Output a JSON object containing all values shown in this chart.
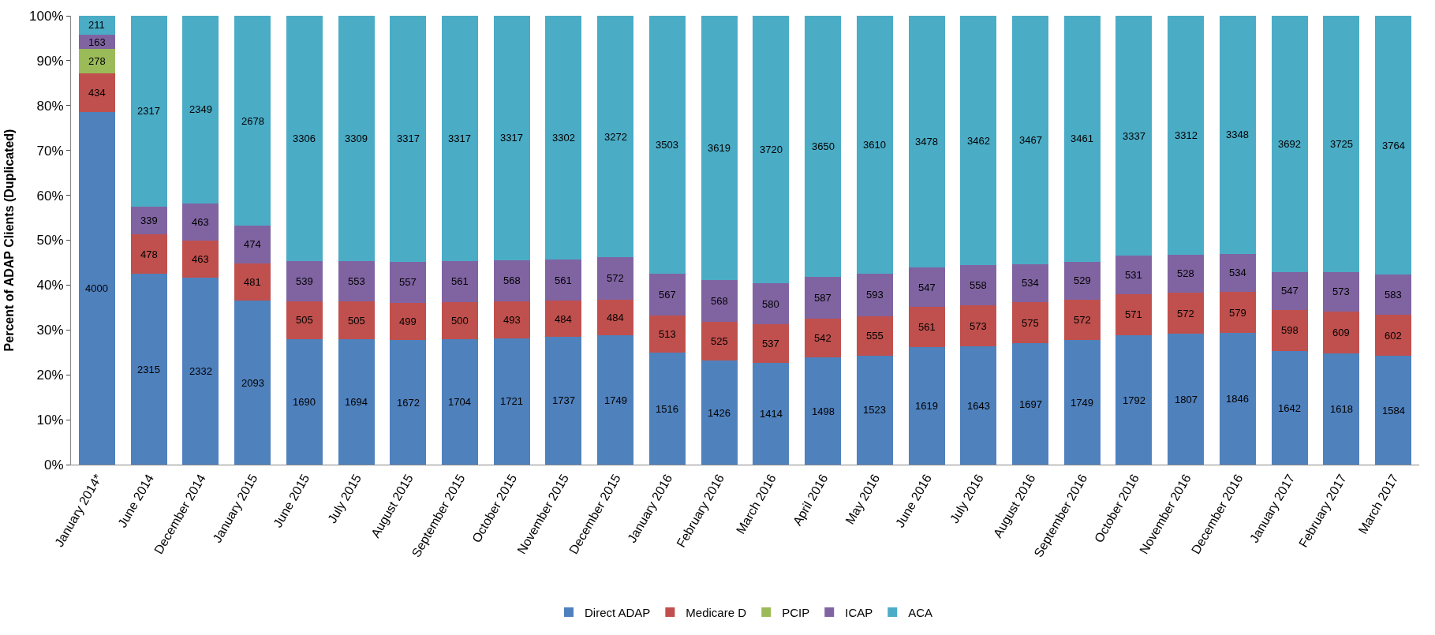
{
  "chart_data": {
    "type": "bar",
    "stacked": true,
    "ylabel": "Percent of ADAP Clients (Duplicated)",
    "categories": [
      "January 2014*",
      "June 2014",
      "December 2014",
      "January 2015",
      "June 2015",
      "July 2015",
      "August 2015",
      "September 2015",
      "October 2015",
      "November 2015",
      "December 2015",
      "January 2016",
      "February 2016",
      "March 2016",
      "April 2016",
      "May 2016",
      "June 2016",
      "July 2016",
      "August 2016",
      "September 2016",
      "October 2016",
      "November 2016",
      "December 2016",
      "January 2017",
      "February 2017",
      "March 2017"
    ],
    "series": [
      {
        "name": "Direct ADAP",
        "color": "#4f81bd",
        "values": [
          78.6,
          42.5,
          41.6,
          36.5,
          28.0,
          28.0,
          27.7,
          28.0,
          28.2,
          28.5,
          28.8,
          24.9,
          23.2,
          22.6,
          23.9,
          24.3,
          26.1,
          26.3,
          27.0,
          27.7,
          28.8,
          29.1,
          29.3,
          25.3,
          24.8,
          24.2
        ]
      },
      {
        "name": "Medicare D",
        "color": "#c0504d",
        "values": [
          8.5,
          8.8,
          8.3,
          8.4,
          8.4,
          8.3,
          8.3,
          8.2,
          8.1,
          8.0,
          8.0,
          8.4,
          8.6,
          8.6,
          8.6,
          8.8,
          9.0,
          9.2,
          9.2,
          9.1,
          9.2,
          9.2,
          9.2,
          9.2,
          9.3,
          9.2
        ]
      },
      {
        "name": "PCIP",
        "color": "#9bbb59",
        "values": [
          5.5,
          null,
          null,
          null,
          null,
          null,
          null,
          null,
          null,
          null,
          null,
          null,
          null,
          null,
          null,
          null,
          null,
          null,
          null,
          null,
          null,
          null,
          null,
          null,
          null,
          null
        ]
      },
      {
        "name": "ICAP",
        "color": "#8064a2",
        "values": [
          3.2,
          6.2,
          8.3,
          8.3,
          8.9,
          9.1,
          9.2,
          9.2,
          9.3,
          9.2,
          9.4,
          9.3,
          9.3,
          9.3,
          9.4,
          9.4,
          8.8,
          8.9,
          8.5,
          8.4,
          8.5,
          8.5,
          8.5,
          8.4,
          8.8,
          8.9
        ]
      },
      {
        "name": "ACA",
        "color": "#4bacc6",
        "values": [
          4.2,
          42.5,
          41.8,
          46.8,
          54.7,
          54.6,
          54.8,
          54.6,
          54.4,
          54.3,
          53.8,
          57.4,
          58.9,
          59.5,
          58.1,
          57.5,
          56.1,
          55.6,
          55.3,
          54.8,
          53.5,
          53.2,
          53.0,
          57.1,
          57.1,
          57.7
        ]
      }
    ],
    "ylim": [
      0,
      100
    ],
    "yticks": [
      {
        "value": 0,
        "label": "0%"
      },
      {
        "value": 10,
        "label": "10%"
      },
      {
        "value": 20,
        "label": "20%"
      },
      {
        "value": 30,
        "label": "30%"
      },
      {
        "value": 40,
        "label": "40%"
      },
      {
        "value": 50,
        "label": "50%"
      },
      {
        "value": 60,
        "label": "60%"
      },
      {
        "value": 70,
        "label": "70%"
      },
      {
        "value": 80,
        "label": "80%"
      },
      {
        "value": 90,
        "label": "90%"
      },
      {
        "value": 100,
        "label": "100%"
      }
    ],
    "annotations": [
      "4000",
      "2315",
      "2332",
      "2093",
      "1690",
      "1694",
      "1672",
      "1704",
      "1721",
      "1737",
      "1749",
      "1516",
      "1426",
      "1414",
      "1498",
      "1523",
      "1619",
      "1643",
      "1697",
      "1749",
      "1792",
      "1807",
      "1846",
      "1642",
      "1618",
      "1584",
      "434",
      "478",
      "463",
      "481",
      "505",
      "505",
      "499",
      "500",
      "493",
      "484",
      "484",
      "513",
      "525",
      "537",
      "542",
      "555",
      "561",
      "573",
      "575",
      "572",
      "571",
      "572",
      "579",
      "598",
      "609",
      "602",
      "278",
      "163",
      "339",
      "463",
      "474",
      "539",
      "553",
      "557",
      "561",
      "568",
      "561",
      "572",
      "567",
      "568",
      "580",
      "587",
      "593",
      "547",
      "558",
      "534",
      "529",
      "531",
      "528",
      "534",
      "547",
      "573",
      "583",
      "211",
      "2317",
      "2349",
      "2678",
      "3306",
      "3309",
      "3317",
      "3317",
      "3317",
      "3302",
      "3272",
      "3503",
      "3619",
      "3720",
      "3650",
      "3610",
      "3478",
      "3462",
      "3467",
      "3461",
      "3337",
      "3312",
      "3348",
      "3692",
      "3725",
      "3764"
    ],
    "legend": "bottom"
  }
}
